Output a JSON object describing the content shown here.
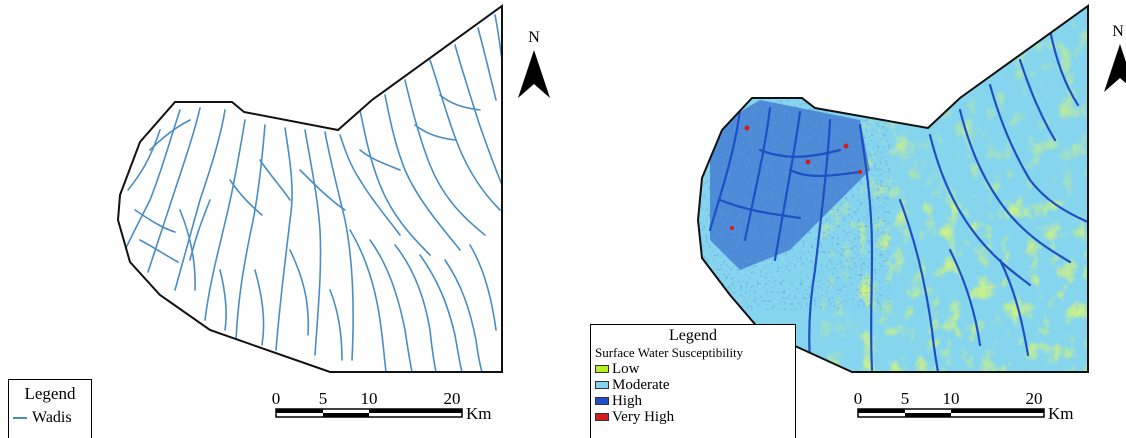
{
  "colors": {
    "wadi": "#4a8dc4",
    "low": "#b6ee2a",
    "moderate": "#86d5ee",
    "high": "#1f4fc4",
    "very_high": "#d11d1d",
    "boundary": "#111111"
  },
  "left_map": {
    "north_label": "N",
    "north_icon": "north-arrow-icon",
    "scale": {
      "ticks": [
        "0",
        "5",
        "10",
        "20"
      ],
      "unit": "Km"
    },
    "legend": {
      "title": "Legend",
      "items": [
        {
          "label": "Wadis",
          "color": "#4a8dc4",
          "symbol": "line"
        }
      ]
    }
  },
  "right_map": {
    "north_label": "N",
    "north_icon": "north-arrow-icon",
    "scale": {
      "ticks": [
        "0",
        "5",
        "10",
        "20"
      ],
      "unit": "Km"
    },
    "legend": {
      "title": "Legend",
      "subtitle": "Surface  Water Susceptibility",
      "items": [
        {
          "label": "Low",
          "color": "#b6ee2a"
        },
        {
          "label": "Moderate",
          "color": "#86d5ee"
        },
        {
          "label": "High",
          "color": "#1f4fc4"
        },
        {
          "label": "Very High",
          "color": "#d11d1d"
        }
      ]
    }
  }
}
